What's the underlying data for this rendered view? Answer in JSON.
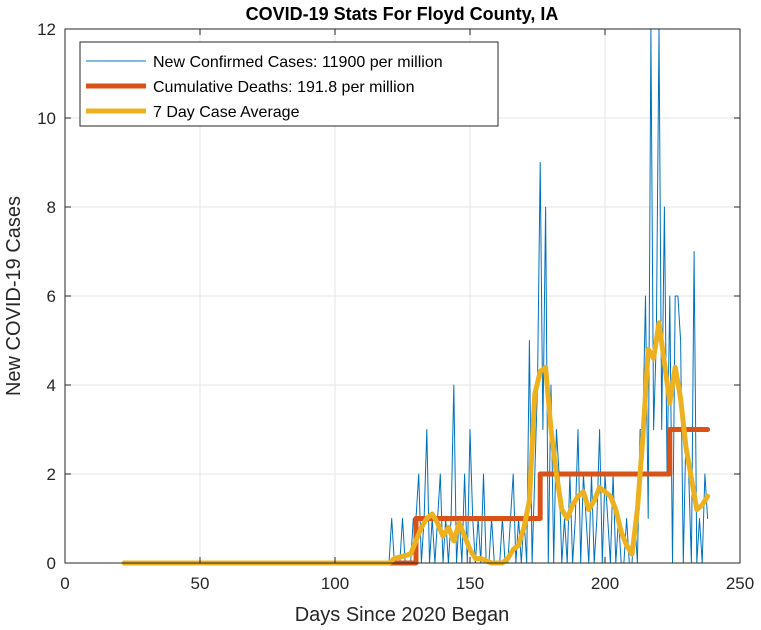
{
  "chart_data": {
    "type": "line",
    "title": "COVID-19 Stats For Floyd County, IA",
    "xlabel": "Days Since 2020 Began",
    "ylabel": "New COVID-19 Cases",
    "xlim": [
      0,
      250
    ],
    "ylim": [
      0,
      12
    ],
    "xticks": [
      0,
      50,
      100,
      150,
      200,
      250
    ],
    "yticks": [
      0,
      2,
      4,
      6,
      8,
      10,
      12
    ],
    "grid": true,
    "legend_position": "top-left",
    "series": [
      {
        "name": "New Confirmed Cases: 11900 per million",
        "color": "#0072BD",
        "line_width": "thin",
        "x": [
          22,
          60,
          100,
          118,
          120,
          121,
          122,
          123,
          124,
          125,
          126,
          127,
          128,
          129,
          130,
          131,
          132,
          133,
          134,
          135,
          136,
          137,
          138,
          139,
          140,
          141,
          142,
          143,
          144,
          145,
          146,
          147,
          148,
          149,
          150,
          151,
          152,
          153,
          154,
          155,
          156,
          157,
          158,
          159,
          160,
          161,
          162,
          163,
          164,
          165,
          166,
          167,
          168,
          169,
          170,
          171,
          172,
          173,
          174,
          175,
          176,
          177,
          178,
          179,
          180,
          181,
          182,
          183,
          184,
          185,
          186,
          187,
          188,
          189,
          190,
          191,
          192,
          193,
          194,
          195,
          196,
          197,
          198,
          199,
          200,
          201,
          202,
          203,
          204,
          205,
          206,
          207,
          208,
          209,
          210,
          211,
          212,
          213,
          214,
          215,
          216,
          217,
          218,
          219,
          220,
          221,
          222,
          223,
          224,
          225,
          226,
          227,
          228,
          229,
          230,
          231,
          232,
          233,
          234,
          235,
          236,
          237,
          238
        ],
        "values": [
          0,
          0,
          0,
          0,
          0,
          1,
          0,
          0,
          0,
          1,
          0,
          0,
          0,
          1,
          1,
          2,
          0,
          1,
          3,
          0,
          1,
          0,
          1,
          2,
          0,
          1,
          0,
          1,
          4,
          0,
          1,
          0,
          2,
          0,
          3,
          1,
          0,
          1,
          0,
          2,
          0,
          0,
          1,
          0,
          0,
          0,
          1,
          0,
          0,
          1,
          2,
          0,
          1,
          0,
          1,
          0,
          5,
          0,
          2,
          4,
          9,
          3,
          8,
          0,
          4,
          0,
          3,
          2,
          0,
          1,
          0,
          2,
          0,
          1,
          3,
          0,
          2,
          1,
          0,
          2,
          0,
          1,
          3,
          0,
          2,
          1,
          0,
          2,
          0,
          1,
          0,
          0,
          1,
          0,
          0,
          1,
          0,
          3,
          3,
          6,
          1,
          12,
          3,
          5,
          12,
          3,
          8,
          2,
          6,
          0,
          6,
          6,
          5,
          0,
          3,
          2,
          0,
          7,
          0,
          1,
          0,
          2,
          1
        ]
      },
      {
        "name": "Cumulative Deaths: 191.8 per million",
        "color": "#D95319",
        "line_width": "thick",
        "x": [
          22,
          130,
          130,
          176,
          176,
          224,
          224,
          238
        ],
        "values": [
          0,
          0,
          1,
          1,
          2,
          2,
          3,
          3
        ]
      },
      {
        "name": "7 Day Case Average",
        "color": "#EDB120",
        "line_width": "thick",
        "x": [
          22,
          110,
          120,
          122,
          125,
          128,
          130,
          132,
          134,
          136,
          138,
          140,
          142,
          144,
          146,
          148,
          150,
          152,
          154,
          156,
          158,
          160,
          162,
          164,
          166,
          168,
          170,
          172,
          174,
          176,
          178,
          180,
          182,
          184,
          186,
          188,
          190,
          192,
          194,
          196,
          198,
          200,
          202,
          204,
          206,
          208,
          210,
          212,
          214,
          216,
          218,
          220,
          222,
          224,
          226,
          228,
          230,
          232,
          234,
          236,
          238
        ],
        "values": [
          0,
          0,
          0,
          0.1,
          0.15,
          0.2,
          0.5,
          0.8,
          1.0,
          1.1,
          0.9,
          0.6,
          0.8,
          0.5,
          0.9,
          0.6,
          0.3,
          0.1,
          0.1,
          0.05,
          0,
          0,
          0,
          0.1,
          0.3,
          0.4,
          0.8,
          1.4,
          3.8,
          4.3,
          4.4,
          3.0,
          2.0,
          1.2,
          1.0,
          1.3,
          1.5,
          1.6,
          1.2,
          1.4,
          1.7,
          1.6,
          1.5,
          1.2,
          0.7,
          0.4,
          0.2,
          1.2,
          2.8,
          4.8,
          4.6,
          5.4,
          4.5,
          3.6,
          4.4,
          3.7,
          2.6,
          1.9,
          1.2,
          1.3,
          1.5
        ]
      }
    ]
  }
}
